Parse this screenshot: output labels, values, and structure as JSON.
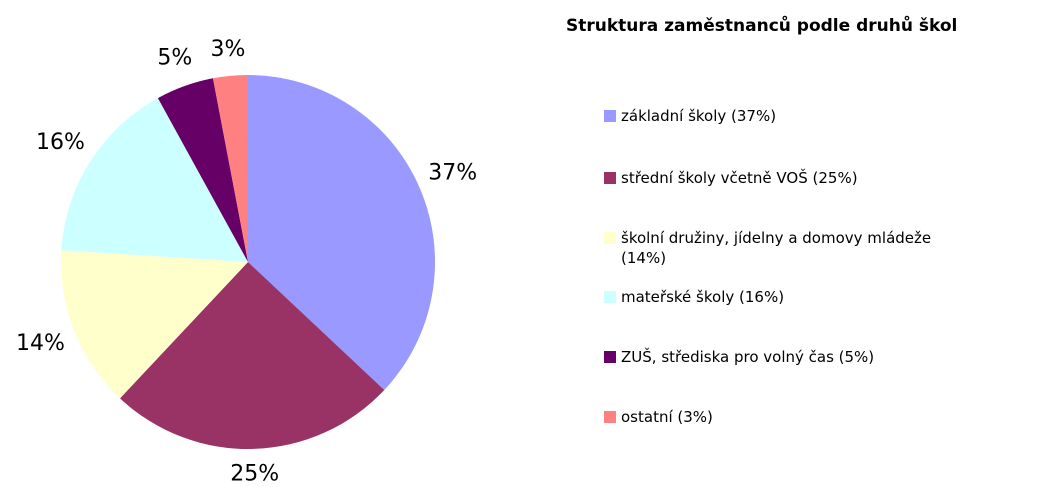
{
  "chart_data": {
    "type": "pie",
    "title": "Struktura zaměstnanců podle druhů škol",
    "categories": [
      "základní školy (37%)",
      "střední školy včetně VOŠ (25%)",
      "školní družiny, jídelny a domovy mládeže (14%)",
      "mateřské školy (16%)",
      "ZUŠ, střediska pro volný čas (5%)",
      "ostatní (3%)"
    ],
    "values": [
      37,
      25,
      14,
      16,
      5,
      3
    ],
    "value_labels": [
      "37%",
      "25%",
      "14%",
      "16%",
      "5%",
      "3%"
    ],
    "colors": [
      "#9999ff",
      "#993366",
      "#ffffcc",
      "#ccffff",
      "#660066",
      "#ff8080"
    ],
    "legend": "right"
  }
}
